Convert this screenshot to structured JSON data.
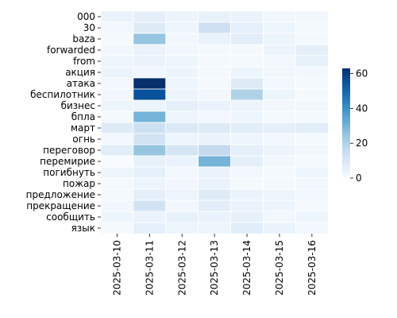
{
  "chart_data": {
    "type": "heatmap",
    "title": "",
    "xlabel": "",
    "ylabel": "",
    "rows": [
      "000",
      "30",
      "baza",
      "forwarded",
      "from",
      "акция",
      "атака",
      "беспилотник",
      "бизнес",
      "бпла",
      "март",
      "огнь",
      "переговор",
      "перемирие",
      "погибнуть",
      "пожар",
      "предложение",
      "прекращение",
      "сообщить",
      "язык"
    ],
    "columns": [
      "2025-03-10",
      "2025-03-11",
      "2025-03-12",
      "2025-03-13",
      "2025-03-14",
      "2025-03-15",
      "2025-03-16"
    ],
    "values": [
      [
        4,
        6,
        3,
        5,
        4,
        2,
        2
      ],
      [
        2,
        8,
        3,
        13,
        6,
        3,
        1
      ],
      [
        1,
        25,
        2,
        4,
        7,
        3,
        1
      ],
      [
        2,
        4,
        2,
        1,
        1,
        3,
        6
      ],
      [
        3,
        4,
        3,
        1,
        1,
        2,
        5
      ],
      [
        4,
        2,
        3,
        1,
        3,
        2,
        2
      ],
      [
        2,
        63,
        3,
        1,
        8,
        2,
        1
      ],
      [
        2,
        55,
        3,
        2,
        20,
        3,
        1
      ],
      [
        3,
        3,
        6,
        4,
        3,
        2,
        2
      ],
      [
        1,
        30,
        3,
        2,
        3,
        1,
        1
      ],
      [
        8,
        13,
        9,
        8,
        7,
        6,
        7
      ],
      [
        2,
        12,
        3,
        4,
        3,
        2,
        1
      ],
      [
        7,
        25,
        11,
        16,
        6,
        3,
        2
      ],
      [
        0,
        5,
        4,
        30,
        6,
        2,
        1
      ],
      [
        3,
        6,
        2,
        4,
        2,
        1,
        3
      ],
      [
        1,
        3,
        2,
        4,
        1,
        1,
        2
      ],
      [
        1,
        6,
        3,
        8,
        4,
        3,
        2
      ],
      [
        2,
        12,
        2,
        7,
        4,
        3,
        1
      ],
      [
        3,
        4,
        5,
        4,
        5,
        2,
        3
      ],
      [
        1,
        6,
        3,
        3,
        7,
        4,
        2
      ]
    ],
    "colorbar": {
      "min": 0,
      "max": 63,
      "ticks": [
        0,
        20,
        40,
        60
      ]
    },
    "colormap": "Blues",
    "grid": true,
    "legend": "colorbar at right"
  }
}
